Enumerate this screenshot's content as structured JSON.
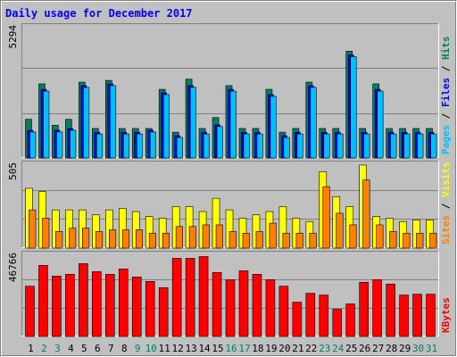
{
  "chart_data": {
    "type": "bar",
    "title": "Daily usage for December 2017",
    "categories": [
      "1",
      "2",
      "3",
      "4",
      "5",
      "6",
      "7",
      "8",
      "9",
      "10",
      "11",
      "12",
      "13",
      "14",
      "15",
      "16",
      "17",
      "18",
      "19",
      "20",
      "21",
      "22",
      "23",
      "24",
      "25",
      "26",
      "27",
      "28",
      "29",
      "30",
      "31"
    ],
    "weekend_days": [
      "2",
      "3",
      "9",
      "10",
      "16",
      "17",
      "23",
      "24",
      "30",
      "31"
    ],
    "panels": [
      {
        "id": "hits-files-pages",
        "ymax_label": "5294",
        "ymax": 5294,
        "legend": [
          {
            "name": "Pages",
            "color": "#00c0ff"
          },
          {
            "name": "Files",
            "color": "#0000ff"
          },
          {
            "name": "Hits",
            "color": "#00805c"
          }
        ],
        "separator": " / ",
        "series": [
          {
            "name": "Hits",
            "values": [
              1560,
              2990,
              1320,
              1560,
              3060,
              1190,
              3130,
              1190,
              1190,
              1190,
              2770,
              1040,
              3180,
              1190,
              1630,
              2920,
              1190,
              1190,
              2770,
              1040,
              1190,
              3060,
              1190,
              1190,
              4310,
              1190,
              2990,
              1190,
              1190,
              1190,
              1190
            ]
          },
          {
            "name": "Files",
            "values": [
              1120,
              2770,
              1120,
              1190,
              2920,
              1040,
              2990,
              1040,
              1040,
              1120,
              2630,
              900,
              2920,
              1040,
              1340,
              2770,
              1040,
              1040,
              2560,
              900,
              1040,
              2920,
              1040,
              1040,
              4160,
              1040,
              2770,
              1040,
              1040,
              1040,
              1040
            ]
          },
          {
            "name": "Pages",
            "values": [
              1120,
              2770,
              1120,
              1190,
              2920,
              1040,
              2990,
              1040,
              1040,
              1120,
              2630,
              900,
              2920,
              1040,
              1340,
              2770,
              1040,
              1040,
              2560,
              900,
              1040,
              2920,
              1040,
              1040,
              4160,
              1040,
              2770,
              1040,
              1040,
              1040,
              1040
            ]
          }
        ]
      },
      {
        "id": "visits-sites",
        "ymax_label": "505",
        "ymax": 505,
        "legend": [
          {
            "name": "Sites",
            "color": "#ff8000"
          },
          {
            "name": "Visits",
            "color": "#ffff00"
          }
        ],
        "separator": " / ",
        "series": [
          {
            "name": "Visits",
            "values": [
              360,
              340,
              230,
              230,
              230,
              200,
              230,
              240,
              220,
              190,
              180,
              250,
              250,
              220,
              300,
              230,
              180,
              200,
              220,
              250,
              180,
              160,
              460,
              310,
              250,
              500,
              190,
              180,
              160,
              170,
              170
            ]
          },
          {
            "name": "Sites",
            "values": [
              230,
              180,
              100,
              120,
              120,
              100,
              110,
              110,
              110,
              90,
              90,
              130,
              130,
              140,
              140,
              100,
              90,
              100,
              150,
              90,
              90,
              90,
              370,
              210,
              140,
              410,
              140,
              100,
              90,
              90,
              90
            ]
          }
        ]
      },
      {
        "id": "kbytes",
        "ymax_label": "46766",
        "ymax": 46766,
        "legend": [
          {
            "name": "KBytes",
            "color": "#ff0000"
          }
        ],
        "separator": "",
        "series": [
          {
            "name": "KBytes",
            "values": [
              28630,
              40470,
              34400,
              35400,
              41470,
              36910,
              35400,
              38430,
              33890,
              31360,
              27820,
              44500,
              44500,
              45510,
              36410,
              32370,
              37420,
              35400,
              32370,
              28640,
              19540,
              24600,
              23600,
              15500,
              18540,
              30860,
              32370,
              29850,
              23600,
              24090,
              24090
            ]
          }
        ]
      }
    ],
    "colors": {
      "background": "#c0c0c0",
      "title": "#0000ff",
      "ymax_label": "#000000",
      "weekday_label": "#000000",
      "weekend_label": "#00805c",
      "hits": "#00805c",
      "files": "#0000ff",
      "pages": "#00c0ff",
      "visits": "#ffff00",
      "sites": "#ff8000",
      "kbytes": "#ff0000",
      "separator": "#000000"
    }
  }
}
